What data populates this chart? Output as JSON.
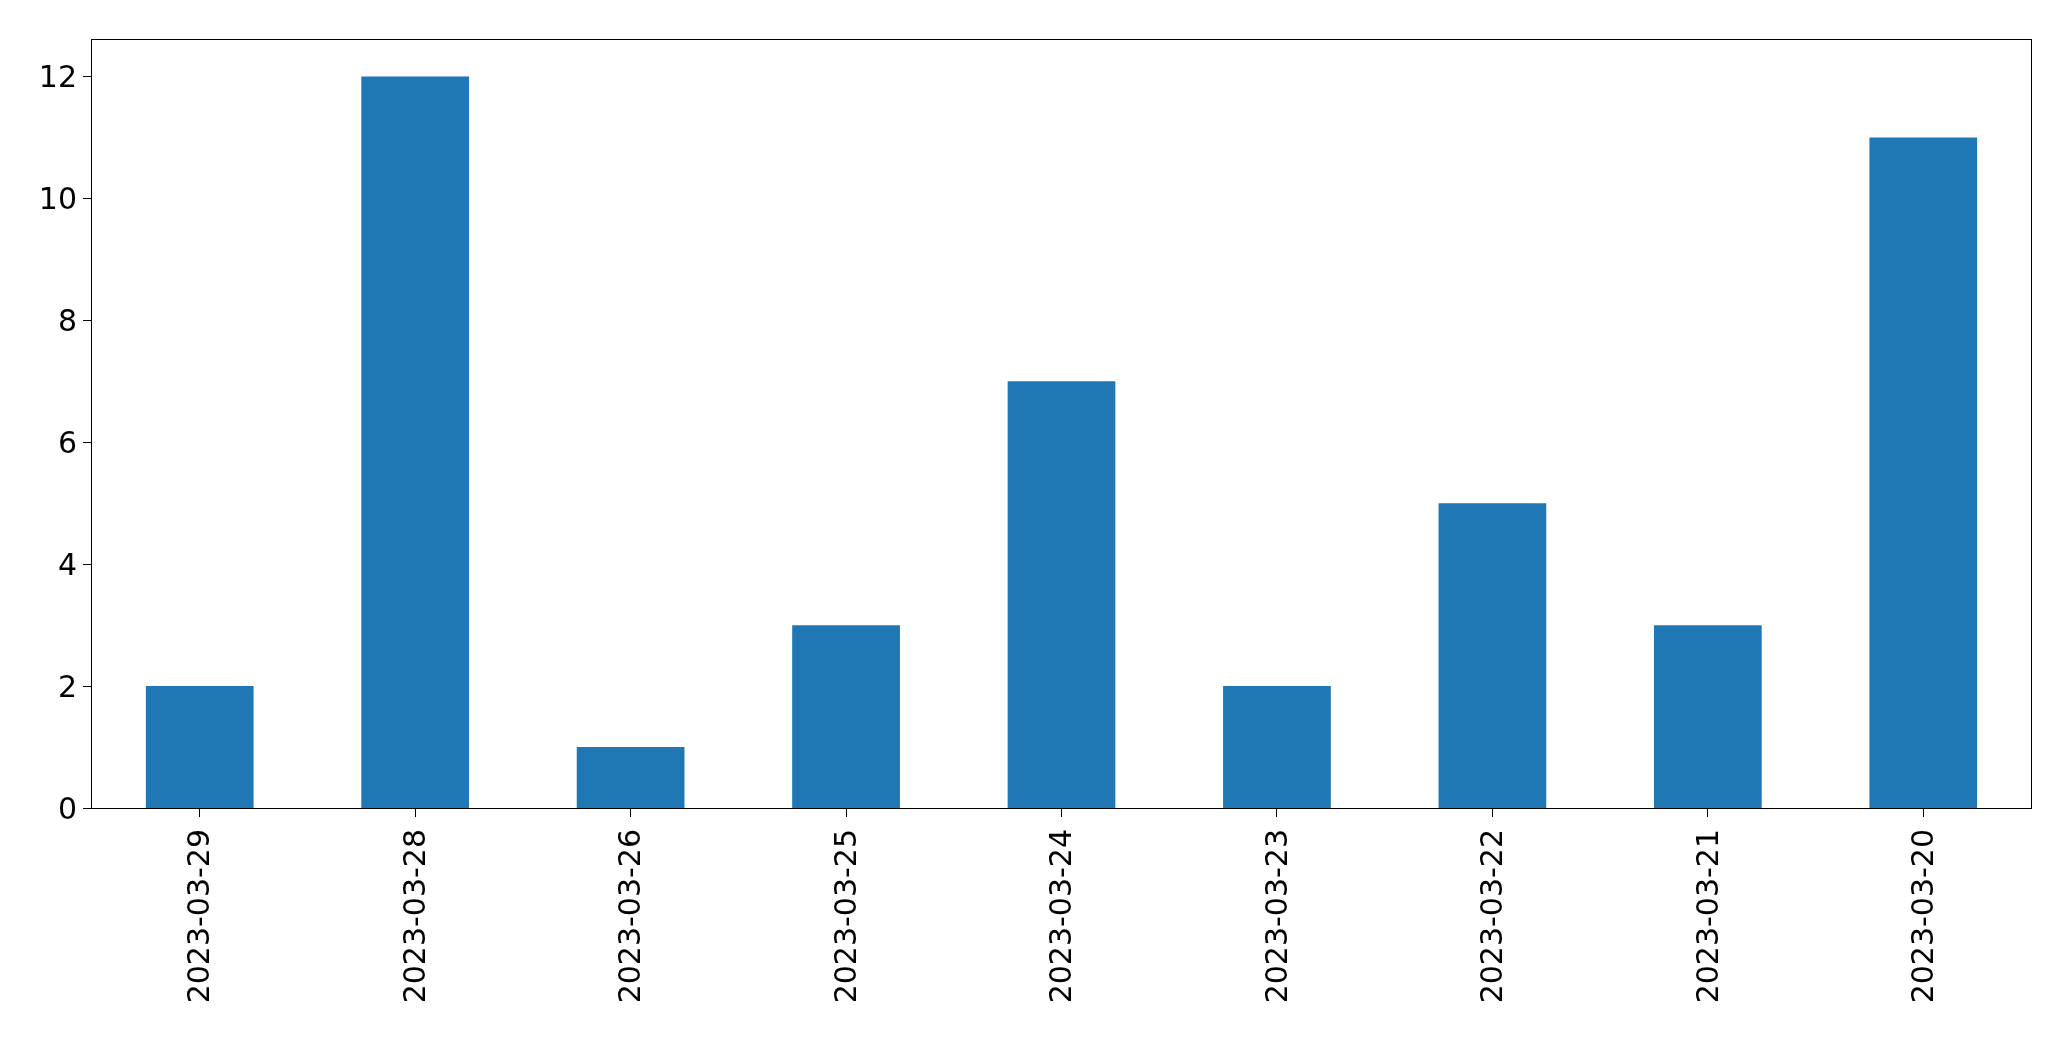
{
  "chart_data": {
    "type": "bar",
    "categories": [
      "2023-03-29",
      "2023-03-28",
      "2023-03-26",
      "2023-03-25",
      "2023-03-24",
      "2023-03-23",
      "2023-03-22",
      "2023-03-21",
      "2023-03-20"
    ],
    "values": [
      2,
      12,
      1,
      3,
      7,
      2,
      5,
      3,
      11
    ],
    "color": "#1f77b4",
    "ylim": [
      0,
      12.6
    ],
    "yticks": [
      0,
      2,
      4,
      6,
      8,
      10,
      12
    ]
  }
}
